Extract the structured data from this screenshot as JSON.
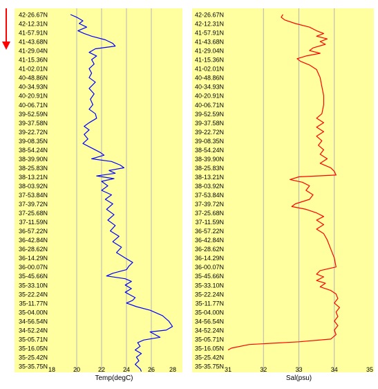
{
  "colors": {
    "background": "#ffffa0",
    "grid": "#b4b4b4",
    "temperature_line": "#0000ff",
    "salinity_line": "#ff0000",
    "direction_arrow": "#ff0000"
  },
  "direction_indicator": "arrow-down",
  "chart_data": [
    {
      "type": "line",
      "xlabel": "Temp(degC)",
      "ylabel": "",
      "xlim": [
        18,
        28
      ],
      "x_ticks": [
        "18",
        "20",
        "22",
        "24",
        "26",
        "28"
      ],
      "y_ticks": [
        "42-26.67N",
        "42-12.31N",
        "41-57.91N",
        "41-43.68N",
        "41-29.04N",
        "41-15.36N",
        "41-02.01N",
        "40-48.86N",
        "40-34.93N",
        "40-20.91N",
        "40-06.71N",
        "39-52.59N",
        "39-37.58N",
        "39-22.72N",
        "39-08.35N",
        "38-54.24N",
        "38-39.90N",
        "38-25.83N",
        "38-13.21N",
        "38-03.92N",
        "37-53.84N",
        "37-39.72N",
        "37-25.68N",
        "37-11.59N",
        "36-57.22N",
        "36-42.84N",
        "36-28.62N",
        "36-14.29N",
        "36-00.07N",
        "35-45.66N",
        "35-33.10N",
        "35-22.24N",
        "35-11.77N",
        "35-04.00N",
        "34-56.54N",
        "34-52.24N",
        "35-05.71N",
        "35-16.05N",
        "35-25.42N",
        "35-35.75N"
      ],
      "grid": true,
      "series": [
        {
          "points": [
            [
              19.5,
              0.0
            ],
            [
              20.0,
              0.3
            ],
            [
              20.5,
              0.7
            ],
            [
              20.2,
              1.0
            ],
            [
              20.8,
              1.4
            ],
            [
              20.1,
              1.8
            ],
            [
              20.6,
              2.1
            ],
            [
              21.2,
              2.4
            ],
            [
              22.3,
              2.8
            ],
            [
              22.9,
              3.2
            ],
            [
              23.1,
              3.5
            ],
            [
              21.5,
              3.8
            ],
            [
              21.0,
              4.2
            ],
            [
              21.6,
              4.6
            ],
            [
              21.2,
              5.0
            ],
            [
              21.4,
              5.5
            ],
            [
              21.0,
              6.0
            ],
            [
              21.2,
              6.5
            ],
            [
              21.0,
              7.0
            ],
            [
              21.5,
              7.5
            ],
            [
              21.0,
              8.2
            ],
            [
              21.4,
              8.8
            ],
            [
              21.1,
              9.4
            ],
            [
              21.3,
              10.0
            ],
            [
              21.0,
              10.5
            ],
            [
              21.5,
              11.0
            ],
            [
              21.6,
              11.5
            ],
            [
              21.0,
              12.0
            ],
            [
              20.6,
              12.4
            ],
            [
              21.0,
              12.8
            ],
            [
              20.6,
              13.3
            ],
            [
              20.9,
              13.8
            ],
            [
              20.5,
              14.3
            ],
            [
              21.2,
              14.8
            ],
            [
              21.9,
              15.3
            ],
            [
              22.2,
              15.6
            ],
            [
              21.2,
              16.0
            ],
            [
              22.8,
              16.3
            ],
            [
              23.5,
              16.7
            ],
            [
              23.8,
              17.0
            ],
            [
              22.6,
              17.3
            ],
            [
              23.1,
              17.6
            ],
            [
              21.6,
              17.9
            ],
            [
              23.0,
              18.2
            ],
            [
              22.0,
              18.5
            ],
            [
              22.5,
              19.0
            ],
            [
              22.0,
              19.5
            ],
            [
              22.8,
              20.0
            ],
            [
              22.3,
              20.5
            ],
            [
              22.9,
              21.0
            ],
            [
              22.4,
              21.6
            ],
            [
              23.0,
              22.2
            ],
            [
              22.5,
              22.8
            ],
            [
              23.1,
              23.4
            ],
            [
              22.7,
              24.0
            ],
            [
              23.4,
              24.6
            ],
            [
              22.9,
              25.2
            ],
            [
              23.6,
              25.8
            ],
            [
              23.2,
              26.4
            ],
            [
              23.9,
              27.0
            ],
            [
              24.5,
              27.5
            ],
            [
              24.2,
              27.9
            ],
            [
              24.0,
              28.3
            ],
            [
              22.9,
              28.7
            ],
            [
              22.4,
              29.0
            ],
            [
              23.9,
              29.3
            ],
            [
              24.4,
              29.6
            ],
            [
              23.9,
              30.0
            ],
            [
              24.4,
              30.4
            ],
            [
              23.9,
              30.8
            ],
            [
              24.3,
              31.1
            ],
            [
              24.7,
              31.4
            ],
            [
              24.5,
              31.7
            ],
            [
              24.0,
              32.0
            ],
            [
              24.8,
              32.4
            ],
            [
              25.9,
              32.8
            ],
            [
              26.9,
              33.4
            ],
            [
              27.4,
              34.0
            ],
            [
              27.7,
              34.6
            ],
            [
              27.2,
              35.0
            ],
            [
              25.9,
              35.2
            ],
            [
              26.3,
              35.5
            ],
            [
              26.7,
              35.8
            ],
            [
              25.4,
              36.1
            ],
            [
              24.9,
              36.4
            ],
            [
              25.1,
              36.8
            ],
            [
              24.7,
              37.2
            ],
            [
              25.2,
              37.6
            ],
            [
              24.8,
              38.0
            ],
            [
              25.0,
              38.4
            ],
            [
              24.7,
              38.8
            ],
            [
              25.1,
              39.3
            ],
            [
              25.2,
              39.6
            ]
          ]
        }
      ]
    },
    {
      "type": "line",
      "xlabel": "Sal(psu)",
      "ylabel": "",
      "xlim": [
        31,
        35
      ],
      "x_ticks": [
        "31",
        "32",
        "33",
        "34",
        "35"
      ],
      "y_ticks": [
        "42-26.67N",
        "42-12.31N",
        "41-57.91N",
        "41-43.68N",
        "41-29.04N",
        "41-15.36N",
        "41-02.01N",
        "40-48.86N",
        "40-34.93N",
        "40-20.91N",
        "40-06.71N",
        "39-52.59N",
        "39-37.58N",
        "39-22.72N",
        "39-08.35N",
        "38-54.24N",
        "38-39.90N",
        "38-25.83N",
        "38-13.21N",
        "38-03.92N",
        "37-53.84N",
        "37-39.72N",
        "37-25.68N",
        "37-11.59N",
        "36-57.22N",
        "36-42.84N",
        "36-28.62N",
        "36-14.29N",
        "36-00.07N",
        "35-45.66N",
        "35-33.10N",
        "35-22.24N",
        "35-11.77N",
        "35-04.00N",
        "34-56.54N",
        "34-52.24N",
        "35-05.71N",
        "35-16.05N",
        "35-25.42N",
        "35-35.75N"
      ],
      "grid": true,
      "series": [
        {
          "points": [
            [
              32.55,
              0.0
            ],
            [
              32.5,
              0.3
            ],
            [
              32.6,
              0.6
            ],
            [
              32.9,
              1.0
            ],
            [
              33.3,
              1.4
            ],
            [
              33.5,
              1.8
            ],
            [
              33.7,
              2.1
            ],
            [
              33.5,
              2.4
            ],
            [
              33.8,
              2.7
            ],
            [
              33.6,
              3.0
            ],
            [
              33.75,
              3.3
            ],
            [
              33.4,
              3.7
            ],
            [
              33.3,
              4.0
            ],
            [
              33.6,
              4.3
            ],
            [
              33.2,
              4.6
            ],
            [
              32.95,
              4.9
            ],
            [
              33.05,
              5.2
            ],
            [
              33.3,
              5.6
            ],
            [
              33.5,
              6.1
            ],
            [
              33.6,
              7.0
            ],
            [
              33.65,
              8.0
            ],
            [
              33.7,
              9.0
            ],
            [
              33.7,
              10.0
            ],
            [
              33.65,
              11.0
            ],
            [
              33.5,
              11.5
            ],
            [
              33.7,
              12.0
            ],
            [
              33.5,
              12.5
            ],
            [
              33.7,
              13.0
            ],
            [
              33.5,
              13.5
            ],
            [
              33.65,
              14.0
            ],
            [
              33.55,
              14.5
            ],
            [
              33.7,
              15.0
            ],
            [
              33.6,
              15.5
            ],
            [
              33.8,
              16.0
            ],
            [
              33.6,
              16.5
            ],
            [
              33.9,
              17.0
            ],
            [
              34.0,
              17.4
            ],
            [
              34.05,
              17.8
            ],
            [
              33.0,
              18.0
            ],
            [
              32.75,
              18.3
            ],
            [
              33.1,
              18.6
            ],
            [
              33.3,
              19.0
            ],
            [
              33.2,
              19.5
            ],
            [
              33.4,
              20.0
            ],
            [
              33.3,
              20.5
            ],
            [
              32.9,
              21.0
            ],
            [
              32.8,
              21.3
            ],
            [
              33.2,
              21.6
            ],
            [
              33.5,
              22.0
            ],
            [
              33.7,
              22.4
            ],
            [
              33.5,
              22.8
            ],
            [
              33.7,
              23.3
            ],
            [
              33.5,
              23.8
            ],
            [
              33.7,
              24.3
            ],
            [
              33.8,
              25.0
            ],
            [
              33.9,
              26.0
            ],
            [
              34.0,
              27.0
            ],
            [
              34.05,
              28.0
            ],
            [
              33.6,
              28.4
            ],
            [
              33.5,
              28.8
            ],
            [
              33.7,
              29.1
            ],
            [
              33.5,
              29.5
            ],
            [
              33.75,
              29.8
            ],
            [
              33.6,
              30.2
            ],
            [
              33.9,
              30.6
            ],
            [
              34.05,
              31.0
            ],
            [
              34.1,
              31.5
            ],
            [
              34.0,
              32.0
            ],
            [
              34.15,
              32.5
            ],
            [
              34.05,
              33.0
            ],
            [
              34.1,
              33.5
            ],
            [
              34.0,
              34.0
            ],
            [
              34.1,
              34.5
            ],
            [
              34.0,
              35.0
            ],
            [
              34.05,
              35.5
            ],
            [
              33.9,
              36.0
            ],
            [
              33.0,
              36.3
            ],
            [
              31.6,
              36.6
            ],
            [
              31.1,
              37.0
            ],
            [
              31.0,
              37.2
            ]
          ]
        }
      ]
    }
  ]
}
